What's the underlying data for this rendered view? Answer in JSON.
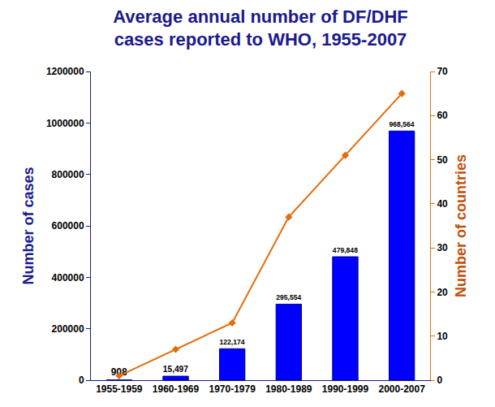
{
  "chart_data": {
    "type": "bar",
    "title": "Average annual number of DF/DHF cases reported to WHO, 1955-2007",
    "x_label": null,
    "y_label": "Number of cases",
    "y2_label": "Number of countries",
    "categories": [
      "1955-1959",
      "1960-1969",
      "1970-1979",
      "1980-1989",
      "1990-1999",
      "2000-2007"
    ],
    "series": [
      {
        "name": "Number of cases",
        "type": "bar",
        "color": "#0000ff",
        "axis": "y",
        "values": [
          908,
          15497,
          122174,
          295554,
          479848,
          968564
        ],
        "value_labels": [
          "908",
          "15,497",
          "122,174",
          "295,554",
          "479,848",
          "968,564"
        ]
      },
      {
        "name": "Number of countries",
        "type": "line",
        "color": "#e46c0a",
        "axis": "y2",
        "marker": "diamond",
        "line_style": "solid",
        "values": [
          1,
          7,
          13,
          37,
          51,
          65
        ]
      }
    ],
    "ylim": [
      0,
      1200000
    ],
    "yticks": [
      0,
      200000,
      400000,
      600000,
      800000,
      1000000,
      1200000
    ],
    "y2lim": [
      0,
      70
    ],
    "y2ticks": [
      0,
      10,
      20,
      30,
      40,
      50,
      60,
      70
    ],
    "grid": false,
    "data_labels": true
  }
}
